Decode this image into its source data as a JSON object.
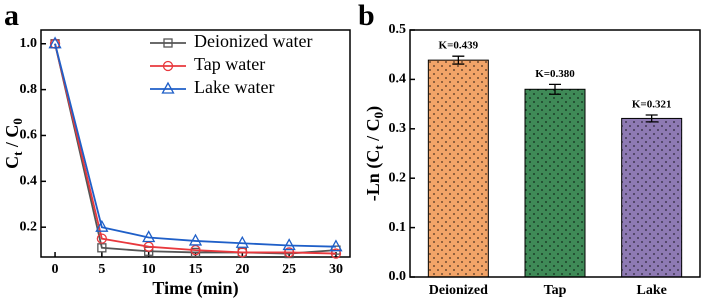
{
  "chart_data": [
    {
      "type": "line",
      "label": "a",
      "x": [
        0,
        5,
        10,
        15,
        20,
        25,
        30
      ],
      "xlabel": "Time (min)",
      "ylabel": [
        "C",
        "t",
        " / C",
        "0"
      ],
      "xlim": [
        -1.5,
        31.5
      ],
      "xticks": [
        0,
        5,
        10,
        15,
        20,
        25,
        30
      ],
      "ylim": [
        0.07,
        1.06
      ],
      "yticks": [
        0.2,
        0.4,
        0.6,
        0.8,
        {
          "value": 1.0,
          "label": "1.0"
        }
      ],
      "legend": "upper right",
      "series": [
        {
          "name": "Deionized water",
          "color": "#555555",
          "marker": "square",
          "values": [
            1.0,
            0.11,
            0.095,
            0.09,
            0.09,
            0.085,
            0.1
          ]
        },
        {
          "name": "Tap water",
          "color": "#e8383d",
          "marker": "circle",
          "values": [
            1.0,
            0.15,
            0.115,
            0.1,
            0.09,
            0.09,
            0.085
          ]
        },
        {
          "name": "Lake water",
          "color": "#1f5fc8",
          "marker": "triangle",
          "values": [
            1.0,
            0.2,
            0.155,
            0.14,
            0.13,
            0.12,
            0.115
          ]
        }
      ]
    },
    {
      "type": "bar",
      "label": "b",
      "categories": [
        "Deionized",
        "Tap",
        "Lake"
      ],
      "ylabel": [
        "-Ln (C",
        "t",
        " / C",
        "0",
        ")"
      ],
      "values": [
        0.439,
        0.38,
        0.321
      ],
      "errors": [
        0.008,
        0.01,
        0.007
      ],
      "value_labels": [
        "K=0.439",
        "K=0.380",
        "K=0.321"
      ],
      "colors": [
        "#f2a468",
        "#3f8a57",
        "#8e7ab3"
      ],
      "ylim": [
        0,
        0.5
      ],
      "yticks": [
        {
          "value": 0,
          "label": "0.0"
        },
        0.1,
        0.2,
        0.3,
        0.4,
        0.5
      ]
    }
  ]
}
